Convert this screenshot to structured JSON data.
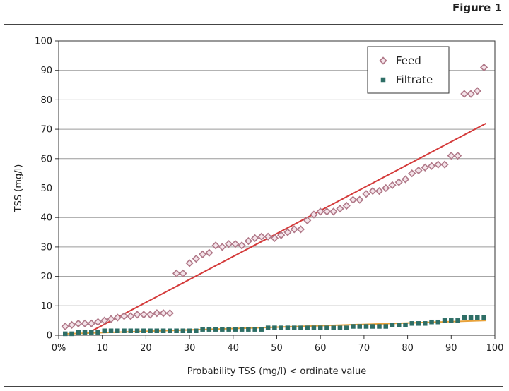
{
  "figure_label": "Figure 1",
  "chart_data": {
    "type": "scatter",
    "xlabel": "Probability TSS (mg/l) < ordinate value",
    "ylabel": "TSS (mg/l)",
    "xlim": [
      0,
      100
    ],
    "ylim": [
      0,
      100
    ],
    "x_ticks": [
      0,
      10,
      20,
      30,
      40,
      50,
      60,
      70,
      80,
      90,
      100
    ],
    "x_tick_labels": [
      "0%",
      "10",
      "20",
      "30",
      "40",
      "50",
      "60",
      "70",
      "80",
      "90",
      "100"
    ],
    "y_ticks": [
      0,
      10,
      20,
      30,
      40,
      50,
      60,
      70,
      80,
      90,
      100
    ],
    "y_tick_labels": [
      "0",
      "10",
      "20",
      "30",
      "40",
      "50",
      "60",
      "70",
      "80",
      "90",
      "100"
    ],
    "grid": "horizontal",
    "legend_position": "top-right",
    "series": [
      {
        "name": "Feed",
        "marker": "diamond",
        "color": "#b07888",
        "points": [
          [
            1.5,
            3
          ],
          [
            3,
            3.5
          ],
          [
            4.5,
            4
          ],
          [
            6,
            4
          ],
          [
            7.5,
            4
          ],
          [
            9,
            4.5
          ],
          [
            10.5,
            5
          ],
          [
            12,
            5.5
          ],
          [
            13.5,
            6
          ],
          [
            15,
            6.5
          ],
          [
            16.5,
            6.5
          ],
          [
            18,
            7
          ],
          [
            19.5,
            7
          ],
          [
            21,
            7
          ],
          [
            22.5,
            7.5
          ],
          [
            24,
            7.5
          ],
          [
            25.5,
            7.5
          ],
          [
            27,
            21
          ],
          [
            28.5,
            21
          ],
          [
            30,
            24.5
          ],
          [
            31.5,
            26
          ],
          [
            33,
            27.5
          ],
          [
            34.5,
            28
          ],
          [
            36,
            30.5
          ],
          [
            37.5,
            30
          ],
          [
            39,
            31
          ],
          [
            40.5,
            31
          ],
          [
            42,
            30.5
          ],
          [
            43.5,
            32
          ],
          [
            45,
            33
          ],
          [
            46.5,
            33.5
          ],
          [
            48,
            33.5
          ],
          [
            49.5,
            33
          ],
          [
            51,
            34
          ],
          [
            52.5,
            35
          ],
          [
            54,
            36
          ],
          [
            55.5,
            36
          ],
          [
            57,
            39
          ],
          [
            58.5,
            41
          ],
          [
            60,
            42
          ],
          [
            61.5,
            42
          ],
          [
            63,
            42
          ],
          [
            64.5,
            43
          ],
          [
            66,
            44
          ],
          [
            67.5,
            46
          ],
          [
            69,
            46
          ],
          [
            70.5,
            48
          ],
          [
            72,
            49
          ],
          [
            73.5,
            49
          ],
          [
            75,
            50
          ],
          [
            76.5,
            51
          ],
          [
            78,
            52
          ],
          [
            79.5,
            53
          ],
          [
            81,
            55
          ],
          [
            82.5,
            56
          ],
          [
            84,
            57
          ],
          [
            85.5,
            57.5
          ],
          [
            87,
            58
          ],
          [
            88.5,
            58
          ],
          [
            90,
            61
          ],
          [
            91.5,
            61
          ],
          [
            93,
            82
          ],
          [
            94.5,
            82
          ],
          [
            96,
            83
          ],
          [
            97.5,
            91
          ]
        ]
      },
      {
        "name": "Filtrate",
        "marker": "square",
        "color": "#2e6e66",
        "points": [
          [
            1.5,
            0.5
          ],
          [
            3,
            0.5
          ],
          [
            4.5,
            1
          ],
          [
            6,
            1
          ],
          [
            7.5,
            1
          ],
          [
            9,
            1
          ],
          [
            10.5,
            1.5
          ],
          [
            12,
            1.5
          ],
          [
            13.5,
            1.5
          ],
          [
            15,
            1.5
          ],
          [
            16.5,
            1.5
          ],
          [
            18,
            1.5
          ],
          [
            19.5,
            1.5
          ],
          [
            21,
            1.5
          ],
          [
            22.5,
            1.5
          ],
          [
            24,
            1.5
          ],
          [
            25.5,
            1.5
          ],
          [
            27,
            1.5
          ],
          [
            28.5,
            1.5
          ],
          [
            30,
            1.5
          ],
          [
            31.5,
            1.5
          ],
          [
            33,
            2
          ],
          [
            34.5,
            2
          ],
          [
            36,
            2
          ],
          [
            37.5,
            2
          ],
          [
            39,
            2
          ],
          [
            40.5,
            2
          ],
          [
            42,
            2
          ],
          [
            43.5,
            2
          ],
          [
            45,
            2
          ],
          [
            46.5,
            2
          ],
          [
            48,
            2.5
          ],
          [
            49.5,
            2.5
          ],
          [
            51,
            2.5
          ],
          [
            52.5,
            2.5
          ],
          [
            54,
            2.5
          ],
          [
            55.5,
            2.5
          ],
          [
            57,
            2.5
          ],
          [
            58.5,
            2.5
          ],
          [
            60,
            2.5
          ],
          [
            61.5,
            2.5
          ],
          [
            63,
            2.5
          ],
          [
            64.5,
            2.5
          ],
          [
            66,
            2.5
          ],
          [
            67.5,
            3
          ],
          [
            69,
            3
          ],
          [
            70.5,
            3
          ],
          [
            72,
            3
          ],
          [
            73.5,
            3
          ],
          [
            75,
            3
          ],
          [
            76.5,
            3.5
          ],
          [
            78,
            3.5
          ],
          [
            79.5,
            3.5
          ],
          [
            81,
            4
          ],
          [
            82.5,
            4
          ],
          [
            84,
            4
          ],
          [
            85.5,
            4.5
          ],
          [
            87,
            4.5
          ],
          [
            88.5,
            5
          ],
          [
            90,
            5
          ],
          [
            91.5,
            5
          ],
          [
            93,
            6
          ],
          [
            94.5,
            6
          ],
          [
            96,
            6
          ],
          [
            97.5,
            6
          ]
        ]
      }
    ],
    "trendlines": [
      {
        "series": "Feed",
        "color": "#d43a3a",
        "points": [
          [
            7,
            1
          ],
          [
            98,
            72
          ]
        ]
      },
      {
        "series": "Filtrate",
        "color": "#e8a23a",
        "points": [
          [
            2,
            0.5
          ],
          [
            98,
            5
          ]
        ]
      }
    ]
  }
}
